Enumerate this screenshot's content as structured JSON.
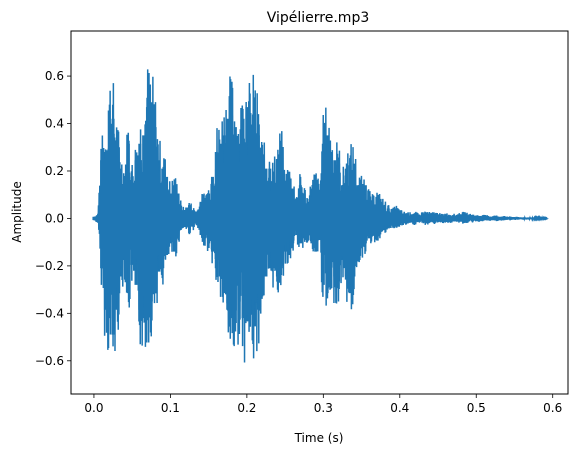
{
  "chart_data": {
    "type": "line",
    "title": "Vipélierre.mp3",
    "xlabel": "Time (s)",
    "ylabel": "Amplitude",
    "xlim": [
      -0.03,
      0.62
    ],
    "ylim": [
      -0.74,
      0.79
    ],
    "x_ticks": [
      0.0,
      0.1,
      0.2,
      0.3,
      0.4,
      0.5,
      0.6
    ],
    "x_tick_labels": [
      "0.0",
      "0.1",
      "0.2",
      "0.3",
      "0.4",
      "0.5",
      "0.6"
    ],
    "y_ticks": [
      -0.6,
      -0.4,
      -0.2,
      0.0,
      0.2,
      0.4,
      0.6
    ],
    "y_tick_labels": [
      "−0.6",
      "−0.4",
      "−0.2",
      "0.0",
      "0.2",
      "0.4",
      "0.6"
    ],
    "grid": false,
    "series_color": "#1f77b4",
    "series": [
      {
        "x": [
          0.0,
          0.005,
          0.01,
          0.015,
          0.02,
          0.025,
          0.03,
          0.035,
          0.04,
          0.045,
          0.05,
          0.055,
          0.06,
          0.065,
          0.07,
          0.075,
          0.08,
          0.085,
          0.09,
          0.095,
          0.1,
          0.105,
          0.11,
          0.115,
          0.12,
          0.125,
          0.13,
          0.135,
          0.14,
          0.145,
          0.15,
          0.155,
          0.16,
          0.165,
          0.17,
          0.175,
          0.18,
          0.185,
          0.19,
          0.195,
          0.2,
          0.205,
          0.21,
          0.215,
          0.22,
          0.225,
          0.23,
          0.235,
          0.24,
          0.245,
          0.25,
          0.255,
          0.26,
          0.265,
          0.27,
          0.275,
          0.28,
          0.285,
          0.29,
          0.295,
          0.3,
          0.305,
          0.31,
          0.315,
          0.32,
          0.325,
          0.33,
          0.335,
          0.34,
          0.345,
          0.35,
          0.355,
          0.36,
          0.365,
          0.37,
          0.375,
          0.38,
          0.385,
          0.39,
          0.395,
          0.4,
          0.405,
          0.41,
          0.415,
          0.42,
          0.425,
          0.43,
          0.435,
          0.44,
          0.445,
          0.45,
          0.455,
          0.46,
          0.465,
          0.47,
          0.475,
          0.48,
          0.485,
          0.49,
          0.495,
          0.5,
          0.505,
          0.51,
          0.515,
          0.52,
          0.525,
          0.53,
          0.535,
          0.54,
          0.545,
          0.55,
          0.555,
          0.56,
          0.565,
          0.57,
          0.575,
          0.58,
          0.585,
          0.59,
          0.593
        ],
        "y_max": [
          0.01,
          0.02,
          0.35,
          0.4,
          0.65,
          0.6,
          0.45,
          0.3,
          0.25,
          0.45,
          0.25,
          0.35,
          0.45,
          0.5,
          0.67,
          0.65,
          0.55,
          0.35,
          0.3,
          0.25,
          0.15,
          0.2,
          0.15,
          0.05,
          0.05,
          0.08,
          0.05,
          0.04,
          0.1,
          0.12,
          0.15,
          0.25,
          0.4,
          0.45,
          0.5,
          0.6,
          0.62,
          0.55,
          0.45,
          0.6,
          0.67,
          0.55,
          0.65,
          0.5,
          0.35,
          0.3,
          0.3,
          0.25,
          0.35,
          0.4,
          0.2,
          0.25,
          0.18,
          0.12,
          0.2,
          0.15,
          0.1,
          0.18,
          0.22,
          0.15,
          0.45,
          0.5,
          0.4,
          0.35,
          0.33,
          0.2,
          0.3,
          0.32,
          0.33,
          0.2,
          0.18,
          0.2,
          0.12,
          0.1,
          0.13,
          0.1,
          0.08,
          0.06,
          0.04,
          0.06,
          0.04,
          0.03,
          0.03,
          0.025,
          0.03,
          0.02,
          0.03,
          0.035,
          0.025,
          0.03,
          0.025,
          0.02,
          0.025,
          0.02,
          0.02,
          0.02,
          0.025,
          0.03,
          0.02,
          0.02,
          0.015,
          0.015,
          0.015,
          0.015,
          0.01,
          0.015,
          0.01,
          0.01,
          0.01,
          0.008,
          0.008,
          0.006,
          0.006,
          0.005,
          0.005,
          0.004,
          0.004,
          0.003,
          0.002,
          0.001
        ],
        "y_min": [
          -0.01,
          -0.02,
          -0.3,
          -0.55,
          -0.6,
          -0.7,
          -0.55,
          -0.35,
          -0.25,
          -0.45,
          -0.28,
          -0.4,
          -0.55,
          -0.6,
          -0.55,
          -0.5,
          -0.4,
          -0.32,
          -0.3,
          -0.22,
          -0.15,
          -0.2,
          -0.12,
          -0.05,
          -0.05,
          -0.07,
          -0.05,
          -0.04,
          -0.1,
          -0.12,
          -0.15,
          -0.2,
          -0.3,
          -0.35,
          -0.45,
          -0.55,
          -0.6,
          -0.63,
          -0.5,
          -0.6,
          -0.62,
          -0.58,
          -0.65,
          -0.55,
          -0.4,
          -0.35,
          -0.3,
          -0.3,
          -0.35,
          -0.3,
          -0.2,
          -0.22,
          -0.15,
          -0.1,
          -0.15,
          -0.12,
          -0.1,
          -0.15,
          -0.2,
          -0.13,
          -0.4,
          -0.45,
          -0.42,
          -0.35,
          -0.38,
          -0.25,
          -0.35,
          -0.45,
          -0.35,
          -0.2,
          -0.18,
          -0.15,
          -0.12,
          -0.1,
          -0.11,
          -0.08,
          -0.07,
          -0.06,
          -0.04,
          -0.05,
          -0.04,
          -0.03,
          -0.03,
          -0.025,
          -0.03,
          -0.02,
          -0.025,
          -0.03,
          -0.02,
          -0.025,
          -0.02,
          -0.02,
          -0.02,
          -0.02,
          -0.018,
          -0.018,
          -0.02,
          -0.025,
          -0.018,
          -0.018,
          -0.015,
          -0.015,
          -0.012,
          -0.012,
          -0.01,
          -0.012,
          -0.01,
          -0.01,
          -0.008,
          -0.008,
          -0.007,
          -0.006,
          -0.005,
          -0.005,
          -0.004,
          -0.004,
          -0.003,
          -0.003,
          -0.002,
          -0.001
        ]
      }
    ]
  }
}
